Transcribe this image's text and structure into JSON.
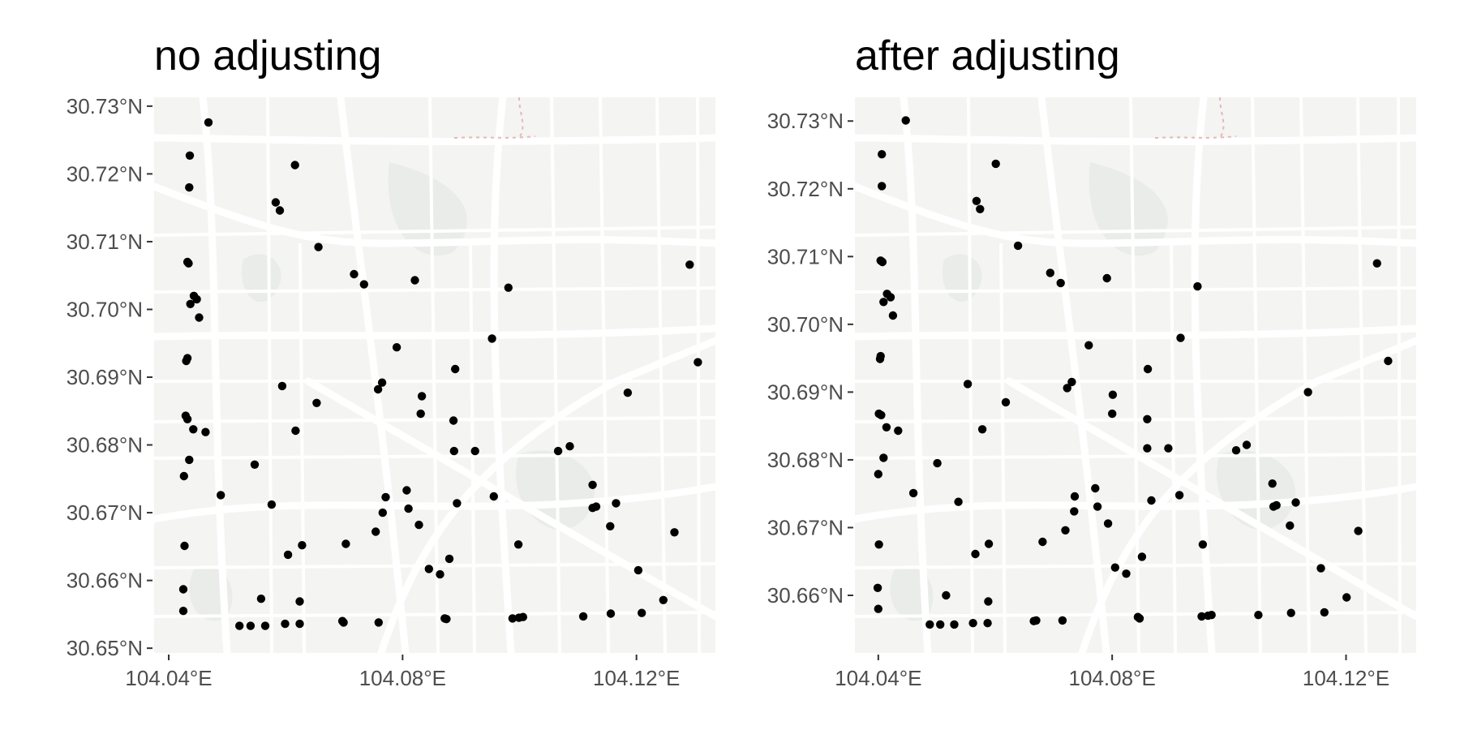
{
  "chart_data": [
    {
      "type": "scatter",
      "title": "no adjusting",
      "xlabel": "",
      "ylabel": "",
      "xlim": [
        104.0375,
        104.1335
      ],
      "ylim": [
        30.6493,
        30.7313
      ],
      "x_ticks": [
        104.04,
        104.08,
        104.12
      ],
      "x_tick_labels": [
        "104.04°E",
        "104.08°E",
        "104.12°E"
      ],
      "y_ticks": [
        30.65,
        30.66,
        30.67,
        30.68,
        30.69,
        30.7,
        30.71,
        30.72,
        30.73
      ],
      "y_tick_labels": [
        "30.65°N",
        "30.66°N",
        "30.67°N",
        "30.68°N",
        "30.69°N",
        "30.70°N",
        "30.71°N",
        "30.72°N",
        "30.73°N"
      ],
      "grid": false,
      "background": "basemap",
      "point_color": "#000000",
      "points": [
        [
          104.0468,
          30.7276
        ],
        [
          104.0436,
          30.7227
        ],
        [
          104.0435,
          30.718
        ],
        [
          104.0432,
          30.707
        ],
        [
          104.0434,
          30.7068
        ],
        [
          104.0437,
          30.7008
        ],
        [
          104.0443,
          30.702
        ],
        [
          104.0448,
          30.7015
        ],
        [
          104.0452,
          30.6988
        ],
        [
          104.043,
          30.6924
        ],
        [
          104.0432,
          30.6928
        ],
        [
          104.0429,
          30.6843
        ],
        [
          104.0432,
          30.6838
        ],
        [
          104.0442,
          30.6823
        ],
        [
          104.0463,
          30.6819
        ],
        [
          104.0435,
          30.6778
        ],
        [
          104.0426,
          30.6754
        ],
        [
          104.0427,
          30.6651
        ],
        [
          104.0425,
          30.6587
        ],
        [
          104.0425,
          30.6555
        ],
        [
          104.0489,
          30.6726
        ],
        [
          104.0521,
          30.6533
        ],
        [
          104.054,
          30.6533
        ],
        [
          104.0565,
          30.6533
        ],
        [
          104.0583,
          30.7158
        ],
        [
          104.059,
          30.7146
        ],
        [
          104.0616,
          30.7213
        ],
        [
          104.0656,
          30.7092
        ],
        [
          104.0717,
          30.7052
        ],
        [
          104.0734,
          30.7037
        ],
        [
          104.0821,
          30.7043
        ],
        [
          104.0981,
          30.7032
        ],
        [
          104.0547,
          30.6771
        ],
        [
          104.0558,
          30.6573
        ],
        [
          104.0576,
          30.6712
        ],
        [
          104.0594,
          30.6887
        ],
        [
          104.0599,
          30.6536
        ],
        [
          104.0604,
          30.6638
        ],
        [
          104.0617,
          30.6821
        ],
        [
          104.0624,
          30.6536
        ],
        [
          104.0624,
          30.6569
        ],
        [
          104.0628,
          30.6652
        ],
        [
          104.0653,
          30.6862
        ],
        [
          104.0697,
          30.654
        ],
        [
          104.0699,
          30.6538
        ],
        [
          104.0703,
          30.6654
        ],
        [
          104.0754,
          30.6672
        ],
        [
          104.0759,
          30.6538
        ],
        [
          104.0758,
          30.6882
        ],
        [
          104.0765,
          30.6892
        ],
        [
          104.0766,
          30.67
        ],
        [
          104.0771,
          30.6723
        ],
        [
          104.079,
          30.6944
        ],
        [
          104.0807,
          30.6733
        ],
        [
          104.081,
          30.6706
        ],
        [
          104.0828,
          30.6682
        ],
        [
          104.0831,
          30.6846
        ],
        [
          104.0833,
          30.6872
        ],
        [
          104.0845,
          30.6617
        ],
        [
          104.0864,
          30.6609
        ],
        [
          104.0872,
          30.6544
        ],
        [
          104.0875,
          30.6543
        ],
        [
          104.088,
          30.6632
        ],
        [
          104.0887,
          30.6836
        ],
        [
          104.0888,
          30.6791
        ],
        [
          104.089,
          30.6912
        ],
        [
          104.0893,
          30.6714
        ],
        [
          104.0924,
          30.6791
        ],
        [
          104.0953,
          30.6957
        ],
        [
          104.0956,
          30.6724
        ],
        [
          104.0988,
          30.6544
        ],
        [
          104.0998,
          30.6653
        ],
        [
          104.0999,
          30.6545
        ],
        [
          104.1006,
          30.6546
        ],
        [
          104.1066,
          30.6791
        ],
        [
          104.1086,
          30.6798
        ],
        [
          104.1109,
          30.6547
        ],
        [
          104.1125,
          30.6741
        ],
        [
          104.1125,
          30.6707
        ],
        [
          104.1131,
          30.6709
        ],
        [
          104.1155,
          30.668
        ],
        [
          104.1156,
          30.6551
        ],
        [
          104.1165,
          30.6714
        ],
        [
          104.1185,
          30.6877
        ],
        [
          104.1203,
          30.6615
        ],
        [
          104.1209,
          30.6552
        ],
        [
          104.1246,
          30.6571
        ],
        [
          104.1265,
          30.6671
        ],
        [
          104.1291,
          30.7066
        ],
        [
          104.1305,
          30.6922
        ]
      ]
    },
    {
      "type": "scatter",
      "title": "after adjusting",
      "xlabel": "",
      "ylabel": "",
      "xlim": [
        104.036,
        104.132
      ],
      "ylim": [
        30.6515,
        30.7335
      ],
      "x_ticks": [
        104.04,
        104.08,
        104.12
      ],
      "x_tick_labels": [
        "104.04°E",
        "104.08°E",
        "104.12°E"
      ],
      "y_ticks": [
        30.66,
        30.67,
        30.68,
        30.69,
        30.7,
        30.71,
        30.72,
        30.73
      ],
      "y_tick_labels": [
        "30.66°N",
        "30.67°N",
        "30.68°N",
        "30.69°N",
        "30.70°N",
        "30.71°N",
        "30.72°N",
        "30.73°N"
      ],
      "grid": false,
      "background": "basemap",
      "point_color": "#000000",
      "points": [
        [
          104.0447,
          30.7301
        ],
        [
          104.0406,
          30.7251
        ],
        [
          104.0406,
          30.7204
        ],
        [
          104.0404,
          30.7094
        ],
        [
          104.0407,
          30.7092
        ],
        [
          104.0409,
          30.7033
        ],
        [
          104.0415,
          30.7045
        ],
        [
          104.0421,
          30.704
        ],
        [
          104.0425,
          30.7013
        ],
        [
          104.0403,
          30.6949
        ],
        [
          104.0404,
          30.6953
        ],
        [
          104.0401,
          30.6868
        ],
        [
          104.0405,
          30.6866
        ],
        [
          104.0414,
          30.6848
        ],
        [
          104.0434,
          30.6843
        ],
        [
          104.0409,
          30.6803
        ],
        [
          104.04,
          30.6779
        ],
        [
          104.0401,
          30.6675
        ],
        [
          104.0399,
          30.6611
        ],
        [
          104.04,
          30.658
        ],
        [
          104.046,
          30.6751
        ],
        [
          104.0488,
          30.6557
        ],
        [
          104.0506,
          30.6557
        ],
        [
          104.053,
          30.6557
        ],
        [
          104.0568,
          30.7182
        ],
        [
          104.0574,
          30.717
        ],
        [
          104.0601,
          30.7237
        ],
        [
          104.0639,
          30.7116
        ],
        [
          104.0694,
          30.7076
        ],
        [
          104.0712,
          30.7061
        ],
        [
          104.0791,
          30.7068
        ],
        [
          104.0946,
          30.7056
        ],
        [
          104.0501,
          30.6795
        ],
        [
          104.0516,
          30.66
        ],
        [
          104.0537,
          30.6738
        ],
        [
          104.0553,
          30.6912
        ],
        [
          104.0562,
          30.6559
        ],
        [
          104.0566,
          30.6661
        ],
        [
          104.0578,
          30.6845
        ],
        [
          104.0587,
          30.6559
        ],
        [
          104.0588,
          30.6591
        ],
        [
          104.0589,
          30.6676
        ],
        [
          104.0618,
          30.6885
        ],
        [
          104.0666,
          30.6562
        ],
        [
          104.067,
          30.6563
        ],
        [
          104.0681,
          30.6679
        ],
        [
          104.072,
          30.6696
        ],
        [
          104.0715,
          30.6563
        ],
        [
          104.0723,
          30.6906
        ],
        [
          104.0731,
          30.6915
        ],
        [
          104.0735,
          30.6724
        ],
        [
          104.0736,
          30.6746
        ],
        [
          104.076,
          30.6969
        ],
        [
          104.0771,
          30.6758
        ],
        [
          104.0775,
          30.6731
        ],
        [
          104.0793,
          30.6706
        ],
        [
          104.08,
          30.6868
        ],
        [
          104.0801,
          30.6896
        ],
        [
          104.0805,
          30.6641
        ],
        [
          104.0824,
          30.6632
        ],
        [
          104.0844,
          30.6568
        ],
        [
          104.0847,
          30.6566
        ],
        [
          104.0851,
          30.6657
        ],
        [
          104.086,
          30.686
        ],
        [
          104.086,
          30.6817
        ],
        [
          104.0861,
          30.6934
        ],
        [
          104.0867,
          30.674
        ],
        [
          104.0896,
          30.6817
        ],
        [
          104.0917,
          30.698
        ],
        [
          104.0915,
          30.6748
        ],
        [
          104.0953,
          30.6569
        ],
        [
          104.0955,
          30.6675
        ],
        [
          104.0964,
          30.657
        ],
        [
          104.097,
          30.6571
        ],
        [
          104.1012,
          30.6814
        ],
        [
          104.103,
          30.6822
        ],
        [
          104.105,
          30.6571
        ],
        [
          104.1074,
          30.6765
        ],
        [
          104.1076,
          30.6731
        ],
        [
          104.1081,
          30.6733
        ],
        [
          104.1104,
          30.6703
        ],
        [
          104.1106,
          30.6574
        ],
        [
          104.1114,
          30.6737
        ],
        [
          104.1135,
          30.69
        ],
        [
          104.1157,
          30.664
        ],
        [
          104.1163,
          30.6575
        ],
        [
          104.1201,
          30.6597
        ],
        [
          104.1221,
          30.6695
        ],
        [
          104.1253,
          30.709
        ],
        [
          104.1272,
          30.6946
        ]
      ]
    }
  ]
}
